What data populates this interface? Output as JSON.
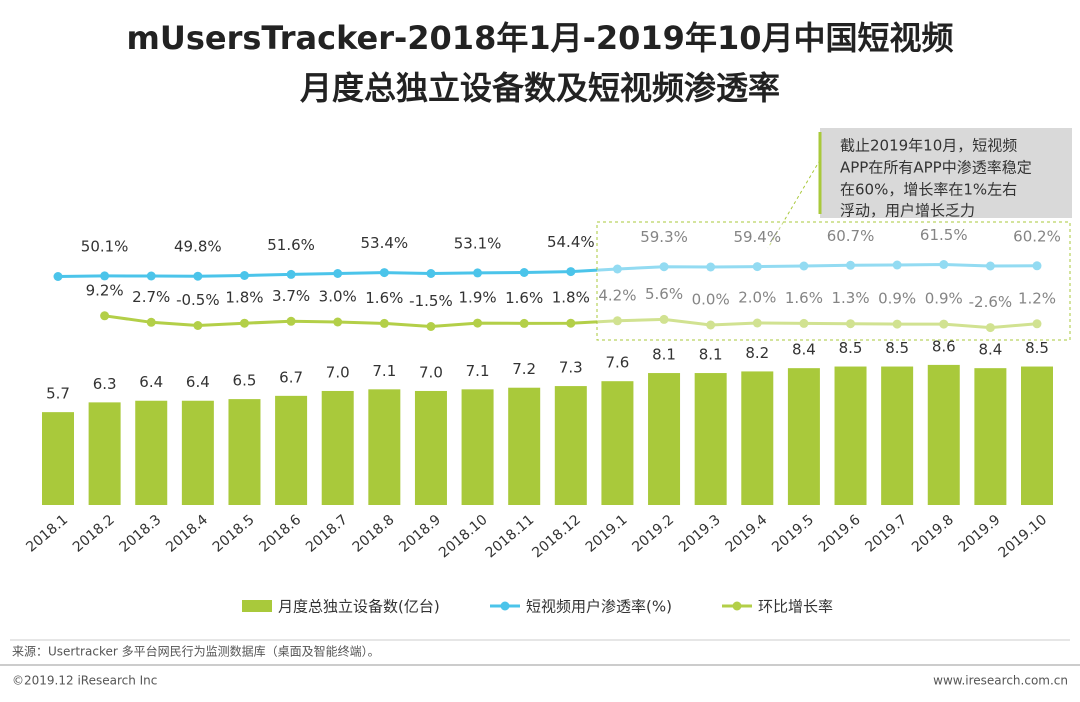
{
  "chart_data": {
    "type": "bar-line",
    "title": [
      "mUsersTracker-2018年1月-2019年10月中国短视频",
      "月度总独立设备数及短视频渗透率"
    ],
    "annotation": [
      "截止2019年10月，短视频",
      "APP在所有APP中渗透率稳定",
      "在60%，增长率在1%左右",
      "浮动，用户增长乏力"
    ],
    "source": "来源：Usertracker 多平台网民行为监测数据库（桌面及智能终端）。",
    "copyright": "©2019.12 iResearch Inc",
    "website": "www.iresearch.com.cn",
    "categories": [
      "2018.1",
      "2018.2",
      "2018.3",
      "2018.4",
      "2018.5",
      "2018.6",
      "2018.7",
      "2018.8",
      "2018.9",
      "2018.10",
      "2018.11",
      "2018.12",
      "2019.1",
      "2019.2",
      "2019.3",
      "2019.4",
      "2019.5",
      "2019.6",
      "2019.7",
      "2019.8",
      "2019.9",
      "2019.10"
    ],
    "series": [
      {
        "name": "月度总独立设备数(亿台)",
        "type": "bar",
        "color": "#a9c93b",
        "ylim": [
          0,
          31
        ],
        "values": [
          5.7,
          6.3,
          6.4,
          6.4,
          6.5,
          6.7,
          7.0,
          7.1,
          7.0,
          7.1,
          7.2,
          7.3,
          7.6,
          8.1,
          8.1,
          8.2,
          8.4,
          8.5,
          8.5,
          8.6,
          8.4,
          8.5
        ],
        "value_labels": [
          "5.7",
          "6.3",
          "6.4",
          "6.4",
          "6.5",
          "6.7",
          "7.0",
          "7.1",
          "7.0",
          "7.1",
          "7.2",
          "7.3",
          "7.6",
          "8.1",
          "8.1",
          "8.2",
          "8.4",
          "8.5",
          "8.5",
          "8.6",
          "8.4",
          "8.5"
        ]
      },
      {
        "name": "短视频用户渗透率(%)",
        "type": "line",
        "color": "#4bc4ea",
        "ylim": [
          0,
          100
        ],
        "values": [
          49.5,
          50.1,
          50.0,
          49.8,
          50.5,
          51.6,
          52.5,
          53.4,
          52.5,
          53.1,
          53.5,
          54.4,
          57.0,
          59.3,
          59.0,
          59.4,
          60.0,
          60.7,
          61.0,
          61.5,
          60.0,
          60.2
        ],
        "value_labels": [
          null,
          "50.1%",
          null,
          "49.8%",
          null,
          "51.6%",
          null,
          "53.4%",
          null,
          "53.1%",
          null,
          "54.4%",
          null,
          "59.3%",
          null,
          "59.4%",
          null,
          "60.7%",
          null,
          "61.5%",
          null,
          "60.2%"
        ]
      },
      {
        "name": "环比增长率",
        "type": "line",
        "color": "#b3cf48",
        "ylim": [
          -50,
          50
        ],
        "values": [
          null,
          9.2,
          2.7,
          -0.5,
          1.8,
          3.7,
          3.0,
          1.6,
          -1.5,
          1.9,
          1.6,
          1.8,
          4.2,
          5.6,
          0.0,
          2.0,
          1.6,
          1.3,
          0.9,
          0.9,
          -2.6,
          1.2
        ],
        "value_labels": [
          null,
          "9.2%",
          "2.7%",
          "-0.5%",
          "1.8%",
          "3.7%",
          "3.0%",
          "1.6%",
          "-1.5%",
          "1.9%",
          "1.6%",
          "1.8%",
          "4.2%",
          "5.6%",
          "0.0%",
          "2.0%",
          "1.6%",
          "1.3%",
          "0.9%",
          "0.9%",
          "-2.6%",
          "1.2%"
        ]
      }
    ]
  }
}
